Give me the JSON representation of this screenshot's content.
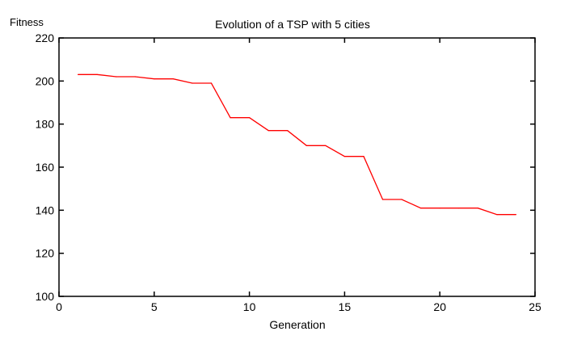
{
  "chart_data": {
    "type": "line",
    "title": "Evolution of a TSP with 5 cities",
    "xlabel": "Generation",
    "ylabel": "Fitness",
    "xlim": [
      0,
      25
    ],
    "ylim": [
      100,
      220
    ],
    "xticks": [
      0,
      5,
      10,
      15,
      20,
      25
    ],
    "yticks": [
      100,
      120,
      140,
      160,
      180,
      200,
      220
    ],
    "grid": false,
    "series": [
      {
        "color": "#ff0000",
        "x": [
          1,
          2,
          3,
          4,
          5,
          6,
          7,
          8,
          9,
          10,
          11,
          12,
          13,
          14,
          15,
          16,
          17,
          18,
          19,
          20,
          21,
          22,
          23,
          24
        ],
        "y": [
          203,
          203,
          202,
          202,
          201,
          201,
          199,
          199,
          183,
          183,
          177,
          177,
          170,
          170,
          165,
          165,
          145,
          145,
          141,
          141,
          141,
          141,
          138,
          138
        ]
      }
    ]
  }
}
